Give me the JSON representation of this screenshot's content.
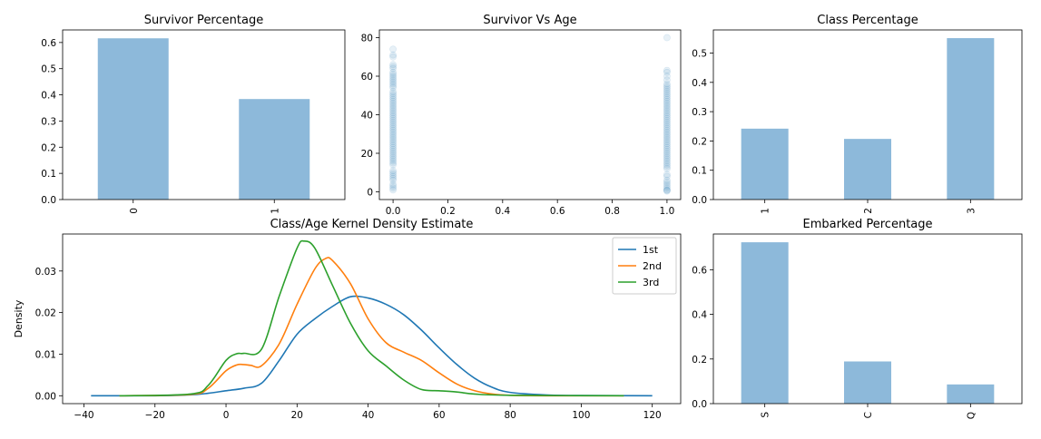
{
  "chart_data": [
    {
      "id": "survivor_pct",
      "type": "bar",
      "title": "Survivor Percentage",
      "categories": [
        "0",
        "1"
      ],
      "values": [
        0.616,
        0.384
      ],
      "ylim": [
        0,
        0.648
      ],
      "yticks": [
        0.0,
        0.1,
        0.2,
        0.3,
        0.4,
        0.5,
        0.6
      ],
      "ytick_labels": [
        "0.0",
        "0.1",
        "0.2",
        "0.3",
        "0.4",
        "0.5",
        "0.6"
      ],
      "xlabel": "",
      "ylabel": "",
      "bar_color": "#8db9da",
      "xtick_rotation": 90
    },
    {
      "id": "survivor_vs_age",
      "type": "scatter",
      "title": "Survivor Vs Age",
      "xlim": [
        -0.05,
        1.05
      ],
      "ylim": [
        -4,
        84
      ],
      "xticks": [
        0.0,
        0.2,
        0.4,
        0.6,
        0.8,
        1.0
      ],
      "xtick_labels": [
        "0.0",
        "0.2",
        "0.4",
        "0.6",
        "0.8",
        "1.0"
      ],
      "yticks": [
        0,
        20,
        40,
        60,
        80
      ],
      "ytick_labels": [
        "0",
        "20",
        "40",
        "60",
        "80"
      ],
      "xlabel": "",
      "ylabel": "",
      "point_color": "#1f77b4",
      "point_alpha": 0.1,
      "series": [
        {
          "x": 0,
          "y": [
            1,
            2,
            3,
            4,
            6,
            7,
            8,
            9,
            10,
            11,
            14,
            15,
            16,
            17,
            18,
            19,
            20,
            21,
            22,
            23,
            24,
            25,
            26,
            27,
            28,
            29,
            30,
            31,
            32,
            33,
            34,
            35,
            36,
            37,
            38,
            39,
            40,
            41,
            42,
            43,
            44,
            45,
            46,
            47,
            48,
            49,
            50,
            51,
            52,
            54,
            55,
            56,
            57,
            58,
            59,
            60,
            61,
            62,
            64,
            65,
            66,
            70,
            71,
            74
          ]
        },
        {
          "x": 1,
          "y": [
            0.4,
            0.8,
            1,
            2,
            3,
            4,
            5,
            6,
            8,
            9,
            12,
            13,
            14,
            15,
            16,
            17,
            18,
            19,
            20,
            21,
            22,
            23,
            24,
            25,
            26,
            27,
            28,
            29,
            30,
            31,
            32,
            33,
            34,
            35,
            36,
            37,
            38,
            39,
            40,
            41,
            42,
            43,
            44,
            45,
            46,
            47,
            48,
            49,
            50,
            51,
            52,
            53,
            54,
            55,
            56,
            58,
            60,
            62,
            63,
            80
          ]
        }
      ]
    },
    {
      "id": "class_pct",
      "type": "bar",
      "title": "Class Percentage",
      "categories": [
        "1",
        "2",
        "3"
      ],
      "values": [
        0.242,
        0.207,
        0.551
      ],
      "ylim": [
        0,
        0.579
      ],
      "yticks": [
        0.0,
        0.1,
        0.2,
        0.3,
        0.4,
        0.5
      ],
      "ytick_labels": [
        "0.0",
        "0.1",
        "0.2",
        "0.3",
        "0.4",
        "0.5"
      ],
      "xlabel": "",
      "ylabel": "",
      "bar_color": "#8db9da",
      "xtick_rotation": 90
    },
    {
      "id": "class_age_kde",
      "type": "line",
      "title": "Class/Age Kernel Density Estimate",
      "xlabel": "",
      "ylabel": "Density",
      "xlim": [
        -46,
        128
      ],
      "ylim": [
        -0.0019,
        0.0389
      ],
      "xticks": [
        -40,
        -20,
        0,
        20,
        40,
        60,
        80,
        100,
        120
      ],
      "xtick_labels": [
        "−40",
        "−20",
        "0",
        "20",
        "40",
        "60",
        "80",
        "100",
        "120"
      ],
      "yticks": [
        0.0,
        0.01,
        0.02,
        0.03
      ],
      "ytick_labels": [
        "0.00",
        "0.01",
        "0.02",
        "0.03"
      ],
      "legend_position": "top-right",
      "series": [
        {
          "name": "1st",
          "color": "#1f77b4",
          "x": [
            -38,
            -20,
            -10,
            -5,
            0,
            5,
            10,
            15,
            20,
            25,
            30,
            35,
            40,
            45,
            50,
            55,
            60,
            65,
            70,
            75,
            80,
            90,
            100,
            120
          ],
          "y": [
            0,
            0,
            0.0002,
            0.0006,
            0.0012,
            0.0018,
            0.003,
            0.0085,
            0.0148,
            0.0185,
            0.0215,
            0.0238,
            0.0235,
            0.022,
            0.0195,
            0.0158,
            0.0115,
            0.0075,
            0.0042,
            0.002,
            0.0008,
            0.0002,
            5e-05,
            0
          ]
        },
        {
          "name": "2nd",
          "color": "#ff7f0e",
          "x": [
            -30,
            -10,
            -5,
            0,
            3,
            5,
            7,
            10,
            15,
            20,
            25,
            28,
            30,
            35,
            40,
            45,
            50,
            55,
            60,
            65,
            70,
            75,
            80,
            90,
            112
          ],
          "y": [
            0,
            0.0003,
            0.0018,
            0.006,
            0.0074,
            0.0075,
            0.0073,
            0.0072,
            0.0125,
            0.022,
            0.0305,
            0.033,
            0.0325,
            0.027,
            0.0185,
            0.0128,
            0.0105,
            0.0085,
            0.0055,
            0.0028,
            0.0012,
            0.0004,
            0.0001,
            0,
            0
          ]
        },
        {
          "name": "3rd",
          "color": "#2ca02c",
          "x": [
            -30,
            -10,
            -5,
            0,
            3,
            5,
            10,
            15,
            20,
            22,
            25,
            30,
            35,
            40,
            45,
            50,
            55,
            60,
            65,
            70,
            80,
            112
          ],
          "y": [
            0,
            0.0004,
            0.0025,
            0.0085,
            0.0101,
            0.0102,
            0.0112,
            0.024,
            0.0355,
            0.0372,
            0.0355,
            0.0265,
            0.0175,
            0.0108,
            0.0072,
            0.0038,
            0.0015,
            0.0012,
            0.0009,
            0.0004,
            0.0001,
            0
          ]
        }
      ]
    },
    {
      "id": "embarked_pct",
      "type": "bar",
      "title": "Embarked Percentage",
      "categories": [
        "S",
        "C",
        "Q"
      ],
      "values": [
        0.723,
        0.189,
        0.086
      ],
      "ylim": [
        0,
        0.76
      ],
      "yticks": [
        0.0,
        0.2,
        0.4,
        0.6
      ],
      "ytick_labels": [
        "0.0",
        "0.2",
        "0.4",
        "0.6"
      ],
      "xlabel": "",
      "ylabel": "",
      "bar_color": "#8db9da",
      "xtick_rotation": 90
    }
  ]
}
